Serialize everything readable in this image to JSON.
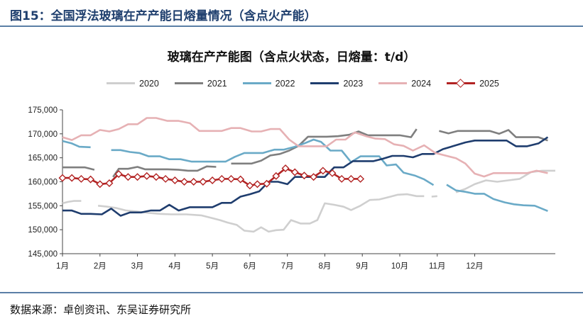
{
  "figure_title": "图15：全国浮法玻璃在产产能日熔量情况（含点火产能）",
  "source": "数据来源：卓创资讯、东吴证券研究所",
  "chart_data": {
    "type": "line",
    "title": "玻璃在产产能图（含点火状态，日熔量：t/d）",
    "xlabel": "",
    "ylabel": "",
    "x_ticks": [
      "1月",
      "2月",
      "3月",
      "4月",
      "5月",
      "6月",
      "7月",
      "8月",
      "9月",
      "10月",
      "11月",
      "12月"
    ],
    "ylim": [
      145000,
      175000
    ],
    "y_ticks": [
      145000,
      150000,
      155000,
      160000,
      165000,
      170000,
      175000
    ],
    "y_tick_labels": [
      "145,000",
      "150,000",
      "155,000",
      "160,000",
      "165,000",
      "170,000",
      "175,000"
    ],
    "grid": false,
    "legend_position": "top",
    "series": [
      {
        "name": "2020",
        "color": "#cfcfcf",
        "points": [
          [
            0.0,
            155500
          ],
          [
            0.15,
            155800
          ],
          [
            0.3,
            156000
          ],
          [
            0.5,
            156000
          ],
          null,
          [
            0.95,
            155000
          ],
          [
            1.2,
            154800
          ],
          [
            1.45,
            154500
          ],
          [
            1.7,
            154000
          ],
          [
            2.0,
            153800
          ],
          [
            2.3,
            153500
          ],
          [
            2.6,
            153300
          ],
          [
            2.9,
            153200
          ],
          [
            3.3,
            153200
          ],
          [
            3.7,
            153000
          ],
          [
            4.0,
            152400
          ],
          [
            4.2,
            152000
          ],
          [
            4.4,
            151500
          ],
          [
            4.65,
            151000
          ],
          [
            4.85,
            149800
          ],
          [
            5.1,
            149600
          ],
          [
            5.3,
            150500
          ],
          [
            5.5,
            149600
          ],
          [
            5.7,
            149900
          ],
          [
            5.9,
            150000
          ],
          [
            6.1,
            152000
          ],
          [
            6.35,
            151300
          ],
          [
            6.6,
            151300
          ],
          [
            6.8,
            152000
          ],
          [
            7.0,
            155500
          ],
          [
            7.25,
            155200
          ],
          [
            7.5,
            154800
          ],
          [
            7.7,
            154100
          ],
          [
            7.95,
            155000
          ],
          [
            8.2,
            156200
          ],
          [
            8.45,
            156300
          ],
          [
            8.7,
            156800
          ],
          [
            8.95,
            157300
          ],
          [
            9.2,
            157400
          ],
          [
            9.45,
            157000
          ],
          [
            9.65,
            157000
          ],
          null,
          [
            9.85,
            156900
          ],
          [
            10.0,
            157000
          ],
          null,
          [
            10.5,
            157800
          ],
          [
            10.75,
            158500
          ],
          [
            11.0,
            159500
          ],
          [
            11.3,
            160300
          ],
          [
            11.6,
            160000
          ],
          [
            11.9,
            160300
          ],
          [
            12.2,
            160600
          ],
          [
            12.5,
            162000
          ],
          [
            12.8,
            162300
          ],
          [
            13.15,
            162300
          ]
        ]
      },
      {
        "name": "2021",
        "color": "#7f7f7f",
        "points": [
          [
            0.0,
            163000
          ],
          [
            0.3,
            163000
          ],
          [
            0.6,
            163000
          ],
          [
            0.85,
            162500
          ],
          null,
          [
            1.35,
            161000
          ],
          [
            1.5,
            162700
          ],
          [
            1.75,
            162700
          ],
          [
            2.0,
            163100
          ],
          [
            2.2,
            162600
          ],
          [
            2.5,
            162600
          ],
          [
            2.8,
            162600
          ],
          [
            3.1,
            162500
          ],
          [
            3.35,
            162300
          ],
          [
            3.6,
            162300
          ],
          [
            3.85,
            163200
          ],
          [
            4.1,
            163100
          ],
          null,
          [
            4.5,
            163800
          ],
          [
            4.8,
            163800
          ],
          [
            5.05,
            163800
          ],
          [
            5.3,
            164400
          ],
          [
            5.55,
            165500
          ],
          [
            5.8,
            165800
          ],
          [
            6.05,
            166500
          ],
          [
            6.3,
            167500
          ],
          [
            6.55,
            169400
          ],
          [
            6.8,
            169400
          ],
          [
            7.05,
            169400
          ],
          [
            7.35,
            169500
          ],
          [
            7.65,
            169800
          ],
          [
            7.9,
            170500
          ],
          [
            8.15,
            169700
          ],
          [
            8.45,
            169700
          ],
          [
            8.75,
            169700
          ],
          [
            9.0,
            169700
          ],
          [
            9.3,
            169300
          ],
          [
            9.45,
            171000
          ],
          null,
          [
            10.05,
            170600
          ],
          [
            10.3,
            170100
          ],
          [
            10.55,
            170600
          ],
          [
            10.85,
            170600
          ],
          [
            11.15,
            170600
          ],
          [
            11.4,
            170600
          ],
          [
            11.65,
            170000
          ],
          [
            11.9,
            170800
          ],
          [
            12.1,
            169300
          ],
          [
            12.4,
            169300
          ],
          [
            12.7,
            169300
          ],
          [
            12.95,
            168600
          ]
        ]
      },
      {
        "name": "2022",
        "color": "#6aaac7",
        "points": [
          [
            0.0,
            168500
          ],
          [
            0.25,
            168000
          ],
          [
            0.45,
            167300
          ],
          [
            0.75,
            167200
          ],
          null,
          [
            1.3,
            166600
          ],
          [
            1.55,
            166600
          ],
          [
            1.8,
            166200
          ],
          [
            2.05,
            166000
          ],
          [
            2.3,
            165300
          ],
          [
            2.6,
            165300
          ],
          [
            2.85,
            164700
          ],
          [
            3.15,
            164700
          ],
          [
            3.45,
            164200
          ],
          [
            3.8,
            164200
          ],
          [
            4.1,
            164200
          ],
          [
            4.35,
            164200
          ],
          [
            4.6,
            165200
          ],
          [
            4.85,
            166000
          ],
          [
            5.1,
            166000
          ],
          [
            5.35,
            166000
          ],
          [
            5.65,
            166700
          ],
          [
            5.9,
            166700
          ],
          [
            6.2,
            167300
          ],
          [
            6.45,
            168000
          ],
          [
            6.7,
            168800
          ],
          [
            6.9,
            168300
          ],
          [
            7.15,
            166500
          ],
          [
            7.45,
            166500
          ],
          [
            7.7,
            164100
          ],
          [
            7.95,
            165300
          ],
          [
            8.2,
            165300
          ],
          [
            8.45,
            165300
          ],
          [
            8.65,
            163400
          ],
          [
            8.9,
            163600
          ],
          [
            9.1,
            161900
          ],
          [
            9.4,
            161300
          ],
          [
            9.65,
            160500
          ],
          [
            9.9,
            159300
          ],
          null,
          [
            10.25,
            159400
          ],
          [
            10.5,
            158200
          ],
          [
            10.75,
            157900
          ],
          [
            11.0,
            157500
          ],
          [
            11.25,
            157500
          ],
          [
            11.5,
            156400
          ],
          [
            11.8,
            155700
          ],
          [
            12.05,
            155300
          ],
          [
            12.3,
            155100
          ],
          [
            12.6,
            155000
          ],
          [
            12.95,
            153900
          ]
        ]
      },
      {
        "name": "2023",
        "color": "#1f3d6e",
        "points": [
          [
            0.0,
            154000
          ],
          [
            0.25,
            154000
          ],
          [
            0.5,
            153300
          ],
          [
            0.75,
            153300
          ],
          [
            1.05,
            153200
          ],
          [
            1.3,
            154400
          ],
          [
            1.55,
            152900
          ],
          [
            1.8,
            153600
          ],
          [
            2.1,
            153600
          ],
          [
            2.35,
            154000
          ],
          [
            2.6,
            154000
          ],
          [
            2.85,
            155200
          ],
          [
            3.1,
            154000
          ],
          [
            3.4,
            154700
          ],
          [
            3.7,
            154700
          ],
          [
            4.0,
            154700
          ],
          [
            4.25,
            155600
          ],
          [
            4.5,
            155600
          ],
          [
            4.75,
            156900
          ],
          [
            5.0,
            157400
          ],
          [
            5.25,
            158000
          ],
          [
            5.5,
            160000
          ],
          [
            5.75,
            160000
          ],
          [
            6.0,
            159500
          ],
          [
            6.2,
            161000
          ],
          [
            6.45,
            161000
          ],
          [
            6.75,
            161000
          ],
          [
            7.0,
            161000
          ],
          [
            7.25,
            163000
          ],
          [
            7.5,
            163000
          ],
          [
            7.75,
            164300
          ],
          [
            8.0,
            164300
          ],
          [
            8.3,
            164300
          ],
          [
            8.55,
            164800
          ],
          [
            8.8,
            165400
          ],
          [
            9.1,
            165400
          ],
          [
            9.35,
            165100
          ],
          [
            9.6,
            165800
          ],
          [
            9.9,
            165800
          ],
          [
            10.15,
            166800
          ],
          [
            10.45,
            167500
          ],
          [
            10.75,
            168200
          ],
          [
            11.0,
            168600
          ],
          [
            11.3,
            168600
          ],
          [
            11.6,
            168600
          ],
          [
            11.85,
            168600
          ],
          [
            12.1,
            167400
          ],
          [
            12.4,
            167400
          ],
          [
            12.7,
            168000
          ],
          [
            12.95,
            169300
          ]
        ]
      },
      {
        "name": "2024",
        "color": "#e6b1b4",
        "points": [
          [
            0.0,
            169300
          ],
          [
            0.25,
            168700
          ],
          [
            0.5,
            169700
          ],
          [
            0.75,
            169700
          ],
          [
            1.0,
            170800
          ],
          [
            1.25,
            170500
          ],
          [
            1.5,
            171000
          ],
          [
            1.75,
            172000
          ],
          [
            2.0,
            172000
          ],
          [
            2.25,
            173300
          ],
          [
            2.5,
            173300
          ],
          [
            2.8,
            172700
          ],
          [
            3.1,
            172700
          ],
          [
            3.4,
            172200
          ],
          [
            3.65,
            170600
          ],
          [
            3.95,
            170600
          ],
          [
            4.25,
            170600
          ],
          [
            4.5,
            171200
          ],
          [
            4.75,
            171200
          ],
          [
            5.05,
            170500
          ],
          [
            5.3,
            170500
          ],
          [
            5.55,
            171000
          ],
          [
            5.8,
            171000
          ],
          [
            6.05,
            168800
          ],
          [
            6.3,
            167400
          ],
          [
            6.55,
            167400
          ],
          [
            6.8,
            167400
          ],
          [
            7.05,
            167400
          ],
          [
            7.3,
            168800
          ],
          [
            7.55,
            168800
          ],
          [
            7.8,
            170300
          ],
          [
            8.1,
            169500
          ],
          [
            8.35,
            169000
          ],
          [
            8.6,
            168900
          ],
          [
            8.85,
            167800
          ],
          [
            9.1,
            167500
          ],
          [
            9.35,
            166500
          ],
          [
            9.65,
            167600
          ],
          [
            9.95,
            166000
          ],
          [
            10.2,
            165500
          ],
          [
            10.5,
            164900
          ],
          [
            10.75,
            163800
          ],
          [
            11.0,
            161700
          ],
          [
            11.25,
            161100
          ],
          [
            11.5,
            161800
          ],
          [
            11.8,
            161800
          ],
          [
            12.1,
            161800
          ],
          [
            12.4,
            161800
          ],
          [
            12.65,
            162300
          ],
          [
            12.95,
            161800
          ]
        ]
      },
      {
        "name": "2025",
        "color": "#b22222",
        "marker": "diamond",
        "points": [
          [
            0.0,
            160800
          ],
          [
            0.25,
            160800
          ],
          [
            0.5,
            160600
          ],
          [
            0.75,
            160500
          ],
          [
            1.0,
            159500
          ],
          [
            1.25,
            159700
          ],
          [
            1.5,
            161600
          ],
          [
            1.75,
            161000
          ],
          [
            2.0,
            161000
          ],
          [
            2.25,
            161200
          ],
          [
            2.5,
            161000
          ],
          [
            2.75,
            160600
          ],
          [
            3.0,
            160300
          ],
          [
            3.25,
            160000
          ],
          [
            3.5,
            160000
          ],
          [
            3.75,
            160000
          ],
          [
            4.0,
            160300
          ],
          [
            4.25,
            160600
          ],
          [
            4.5,
            160600
          ],
          [
            4.75,
            160500
          ],
          [
            5.0,
            159200
          ],
          [
            5.2,
            159500
          ],
          [
            5.45,
            159600
          ],
          [
            5.7,
            161200
          ],
          [
            5.95,
            162800
          ],
          [
            6.2,
            162000
          ],
          [
            6.45,
            161300
          ],
          [
            6.7,
            161000
          ],
          [
            6.95,
            162300
          ],
          [
            7.2,
            161800
          ],
          [
            7.45,
            160600
          ],
          [
            7.7,
            160600
          ],
          [
            7.95,
            160600
          ]
        ]
      }
    ]
  }
}
